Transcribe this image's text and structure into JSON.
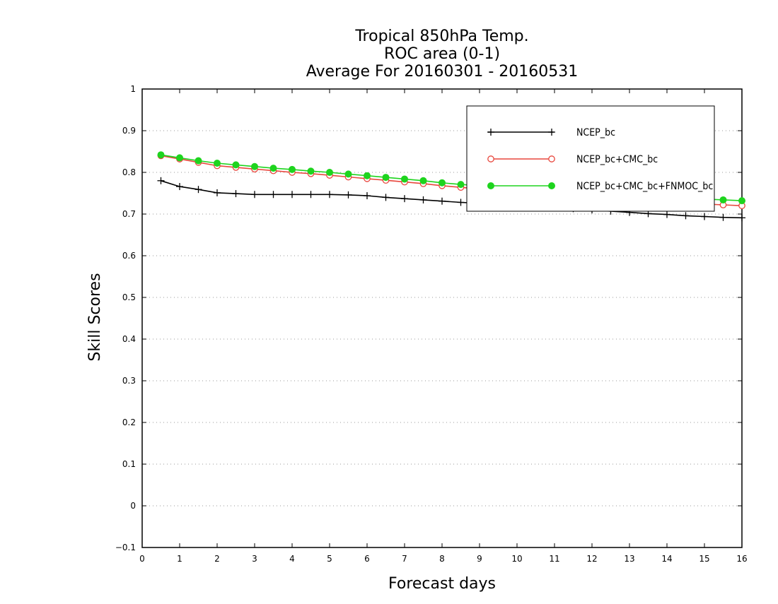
{
  "chart_data": {
    "type": "line",
    "title_lines": [
      "Tropical 850hPa Temp.",
      "ROC area (0-1)",
      "Average For 20160301 - 20160531"
    ],
    "xlabel": "Forecast days",
    "ylabel": "Skill Scores",
    "xlim": [
      0,
      16
    ],
    "ylim": [
      -0.1,
      1.0
    ],
    "xticks": [
      "0",
      "1",
      "2",
      "3",
      "4",
      "5",
      "6",
      "7",
      "8",
      "9",
      "10",
      "11",
      "12",
      "13",
      "14",
      "15",
      "16"
    ],
    "yticks": [
      "−0.1",
      "0",
      "0.1",
      "0.2",
      "0.3",
      "0.4",
      "0.5",
      "0.6",
      "0.7",
      "0.8",
      "0.9",
      "1"
    ],
    "grid": true,
    "legend_position": "top-right",
    "x": [
      0.5,
      1,
      1.5,
      2,
      2.5,
      3,
      3.5,
      4,
      4.5,
      5,
      5.5,
      6,
      6.5,
      7,
      7.5,
      8,
      8.5,
      9,
      9.5,
      10,
      10.5,
      11,
      11.5,
      12,
      12.5,
      13,
      13.5,
      14,
      14.5,
      15,
      15.5,
      16
    ],
    "series": [
      {
        "name": "NCEP_bc",
        "color": "#000000",
        "marker": "plus",
        "values": [
          0.78,
          0.766,
          0.759,
          0.751,
          0.749,
          0.747,
          0.747,
          0.747,
          0.747,
          0.747,
          0.746,
          0.744,
          0.74,
          0.737,
          0.734,
          0.731,
          0.728,
          0.726,
          0.724,
          0.721,
          0.718,
          0.716,
          0.713,
          0.71,
          0.707,
          0.704,
          0.701,
          0.699,
          0.696,
          0.694,
          0.692,
          0.691
        ]
      },
      {
        "name": "NCEP_bc+CMC_bc",
        "color": "#e8473d",
        "marker": "open-circle",
        "values": [
          0.84,
          0.832,
          0.824,
          0.816,
          0.812,
          0.808,
          0.804,
          0.8,
          0.797,
          0.793,
          0.789,
          0.785,
          0.781,
          0.777,
          0.773,
          0.768,
          0.764,
          0.76,
          0.757,
          0.753,
          0.75,
          0.747,
          0.744,
          0.741,
          0.738,
          0.735,
          0.732,
          0.729,
          0.727,
          0.724,
          0.722,
          0.72
        ]
      },
      {
        "name": "NCEP_bc+CMC_bc+FNMOC_bc",
        "color": "#1ed41e",
        "marker": "filled-circle",
        "values": [
          0.842,
          0.835,
          0.828,
          0.822,
          0.818,
          0.814,
          0.81,
          0.807,
          0.803,
          0.8,
          0.796,
          0.792,
          0.788,
          0.784,
          0.78,
          0.775,
          0.771,
          0.768,
          0.764,
          0.761,
          0.758,
          0.755,
          0.752,
          0.749,
          0.746,
          0.744,
          0.742,
          0.74,
          0.738,
          0.736,
          0.734,
          0.732
        ]
      }
    ]
  }
}
